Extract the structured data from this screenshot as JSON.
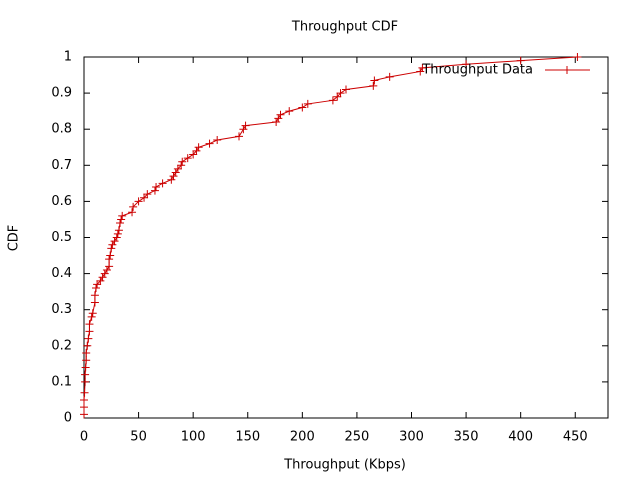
{
  "chart_data": {
    "type": "line",
    "title": "Throughput CDF",
    "xlabel": "Throughput (Kbps)",
    "ylabel": "CDF",
    "xlim": [
      0,
      480
    ],
    "ylim": [
      0,
      1
    ],
    "xticks": [
      0,
      50,
      100,
      150,
      200,
      250,
      300,
      350,
      400,
      450
    ],
    "yticks": [
      0,
      0.1,
      0.2,
      0.3,
      0.4,
      0.5,
      0.6,
      0.7,
      0.8,
      0.9,
      1
    ],
    "legend": "top-right",
    "x": [
      0,
      0,
      0,
      0.5,
      1,
      1,
      1.5,
      2,
      2,
      3,
      4,
      5,
      5,
      7,
      8,
      10,
      10,
      11,
      12,
      15,
      17,
      19,
      21,
      23,
      23,
      24,
      25,
      26,
      28,
      30,
      31,
      32,
      33,
      34,
      35,
      44,
      45,
      50,
      55,
      58,
      65,
      66,
      72,
      80,
      82,
      84,
      86,
      89,
      90,
      95,
      100,
      103,
      105,
      115,
      122,
      142,
      146,
      148,
      176,
      178,
      180,
      188,
      200,
      205,
      228,
      232,
      235,
      240,
      265,
      266,
      280,
      308,
      310,
      350,
      400,
      452
    ],
    "series": [
      {
        "name": "Throughput Data",
        "color": "#cc0000",
        "values": [
          0.01,
          0.03,
          0.05,
          0.07,
          0.1,
          0.12,
          0.14,
          0.16,
          0.18,
          0.2,
          0.22,
          0.24,
          0.26,
          0.28,
          0.29,
          0.32,
          0.34,
          0.36,
          0.37,
          0.38,
          0.39,
          0.4,
          0.41,
          0.42,
          0.44,
          0.45,
          0.47,
          0.48,
          0.49,
          0.5,
          0.51,
          0.52,
          0.54,
          0.55,
          0.56,
          0.57,
          0.585,
          0.6,
          0.61,
          0.62,
          0.63,
          0.64,
          0.65,
          0.66,
          0.67,
          0.68,
          0.69,
          0.7,
          0.71,
          0.72,
          0.73,
          0.74,
          0.75,
          0.76,
          0.77,
          0.78,
          0.8,
          0.81,
          0.82,
          0.83,
          0.84,
          0.85,
          0.86,
          0.87,
          0.88,
          0.89,
          0.9,
          0.91,
          0.92,
          0.935,
          0.945,
          0.96,
          0.97,
          0.98,
          0.99,
          1.0
        ]
      }
    ]
  }
}
